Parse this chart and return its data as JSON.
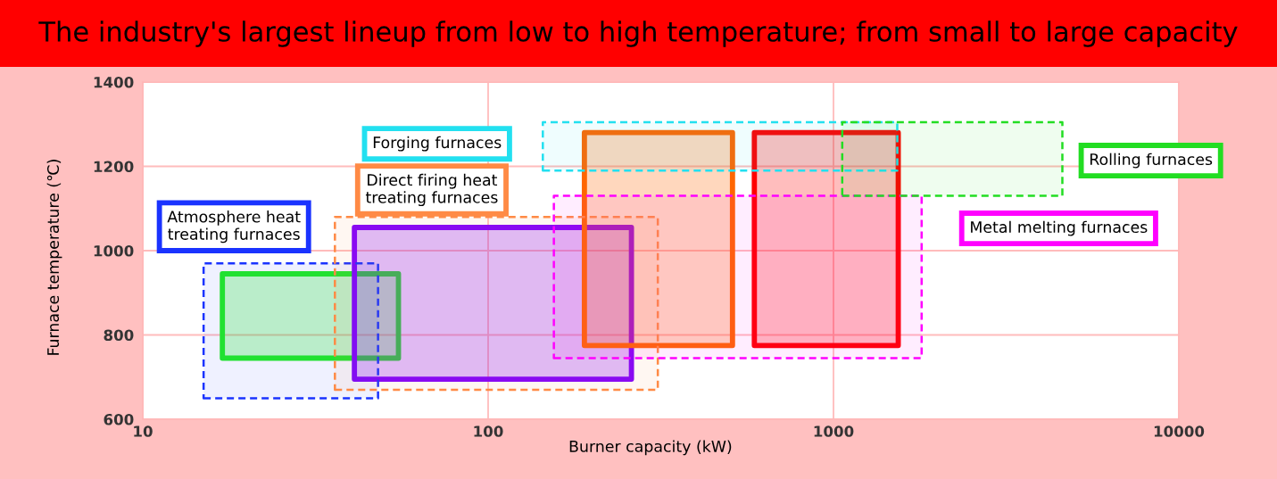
{
  "chart_data": {
    "type": "area",
    "title": "The industry's largest lineup from low to high temperature; from small to large capacity",
    "xlabel": "Burner capacity (kW)",
    "ylabel": "Furnace temperature (℃)",
    "log": "x",
    "xlim": [
      10,
      10000
    ],
    "xticks": [
      10,
      100,
      1000,
      10000
    ],
    "ylim": [
      600,
      1400
    ],
    "yticks": [
      600,
      800,
      1000,
      1200,
      1400
    ],
    "grid": true,
    "series": [
      {
        "color": "#22ee22",
        "line_style": "solid",
        "x": [
          17,
          55,
          55,
          17,
          17
        ],
        "values": [
          745,
          745,
          945,
          945,
          745
        ]
      },
      {
        "color": "#8000ff",
        "line_style": "solid",
        "x": [
          41,
          260,
          260,
          41,
          41
        ],
        "values": [
          695,
          695,
          1055,
          1055,
          695
        ]
      },
      {
        "color": "#ff6600",
        "line_style": "solid",
        "x": [
          190,
          510,
          510,
          190,
          190
        ],
        "values": [
          775,
          775,
          1280,
          1280,
          775
        ]
      },
      {
        "color": "#ff0000",
        "line_style": "solid",
        "x": [
          590,
          1540,
          1540,
          590,
          590
        ],
        "values": [
          775,
          775,
          1280,
          1280,
          775
        ]
      },
      {
        "name": "Atmosphere heat treating furnaces",
        "color": "#1a33ff",
        "line_style": "dashed",
        "x": [
          15,
          48,
          48,
          15,
          15
        ],
        "values": [
          650,
          650,
          970,
          970,
          650
        ]
      },
      {
        "name": "Direct firing heat treating furnaces",
        "color": "#ff8a45",
        "line_style": "dashed",
        "x": [
          36,
          310,
          310,
          36,
          36
        ],
        "values": [
          670,
          670,
          1080,
          1080,
          670
        ]
      },
      {
        "name": "Forging furnaces",
        "color": "#22e0f0",
        "line_style": "dashed",
        "x": [
          144,
          1530,
          1530,
          144,
          144
        ],
        "values": [
          1190,
          1190,
          1305,
          1305,
          1190
        ]
      },
      {
        "name": "Metal melting furnaces",
        "color": "#ff00ff",
        "line_style": "dashed",
        "x": [
          155,
          1800,
          1800,
          155,
          155
        ],
        "values": [
          745,
          745,
          1130,
          1130,
          745
        ]
      },
      {
        "name": "Rolling furnaces",
        "color": "#22dd22",
        "line_style": "dashed",
        "x": [
          1060,
          4600,
          4600,
          1060,
          1060
        ],
        "values": [
          1130,
          1130,
          1305,
          1305,
          1130
        ]
      }
    ]
  }
}
